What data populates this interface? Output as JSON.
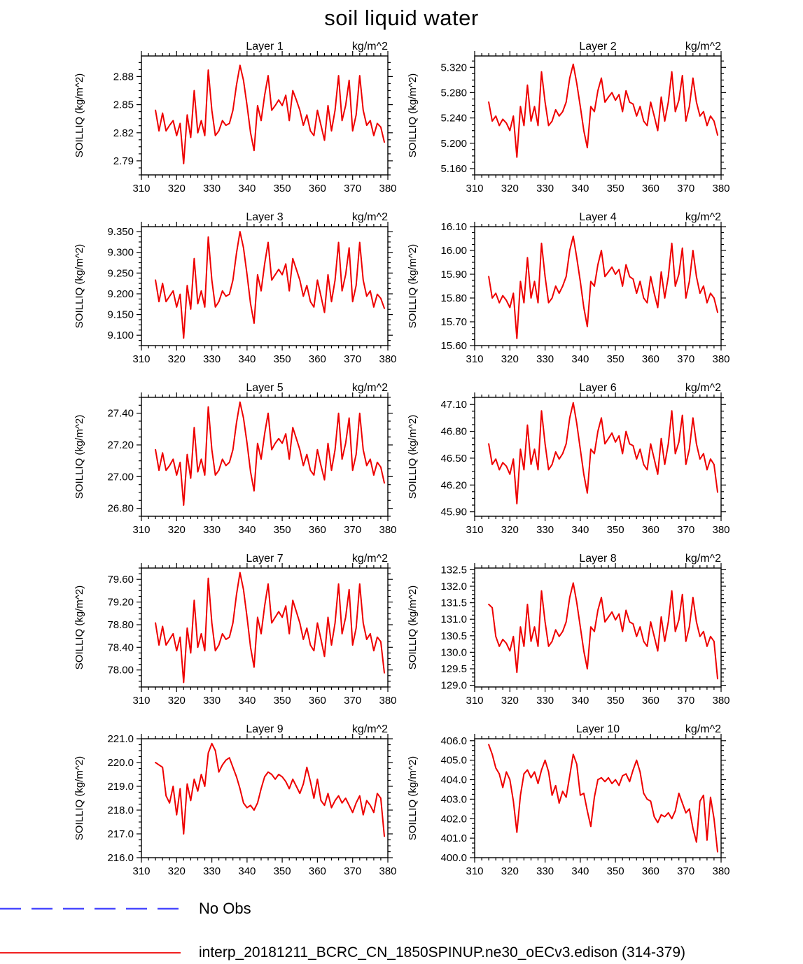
{
  "page": {
    "title": "soil liquid water"
  },
  "legend": {
    "no_obs": {
      "label": "No Obs",
      "color": "#4848ff",
      "line_style": "dashed"
    },
    "series": {
      "label": "interp_20181211_BCRC_CN_1850SPINUP.ne30_oECv3.edison (314-379)",
      "color": "#ee0000",
      "line_style": "solid"
    }
  },
  "chart_data": {
    "type": "line",
    "title": "soil liquid water",
    "series_name": "interp_20181211_BCRC_CN_1850SPINUP.ne30_oECv3.edison (314-379)",
    "series_color": "#ee0000",
    "xlim": [
      310,
      380
    ],
    "xticks": [
      310,
      320,
      330,
      340,
      350,
      360,
      370,
      380
    ],
    "x_minor_step": 2,
    "grid": false,
    "x": [
      314,
      315,
      316,
      317,
      318,
      319,
      320,
      321,
      322,
      323,
      324,
      325,
      326,
      327,
      328,
      329,
      330,
      331,
      332,
      333,
      334,
      335,
      336,
      337,
      338,
      339,
      340,
      341,
      342,
      343,
      344,
      345,
      346,
      347,
      348,
      349,
      350,
      351,
      352,
      353,
      354,
      355,
      356,
      357,
      358,
      359,
      360,
      361,
      362,
      363,
      364,
      365,
      366,
      367,
      368,
      369,
      370,
      371,
      372,
      373,
      374,
      375,
      376,
      377,
      378,
      379
    ],
    "panels": [
      {
        "title": "Layer 1",
        "units_label": "kg/m^2",
        "ylabel": "SOILLIQ  (kg/m^2)",
        "ylim": [
          2.775,
          2.902
        ],
        "yticks": [
          2.79,
          2.82,
          2.85,
          2.88
        ],
        "ytick_labels": [
          "2.79",
          "2.82",
          "2.85",
          "2.88"
        ],
        "values": [
          2.844,
          2.822,
          2.841,
          2.822,
          2.828,
          2.833,
          2.817,
          2.83,
          2.787,
          2.839,
          2.815,
          2.865,
          2.82,
          2.833,
          2.817,
          2.887,
          2.844,
          2.817,
          2.822,
          2.833,
          2.828,
          2.83,
          2.844,
          2.871,
          2.892,
          2.876,
          2.849,
          2.82,
          2.801,
          2.849,
          2.833,
          2.86,
          2.881,
          2.844,
          2.849,
          2.855,
          2.849,
          2.86,
          2.833,
          2.865,
          2.855,
          2.844,
          2.828,
          2.839,
          2.822,
          2.817,
          2.844,
          2.828,
          2.812,
          2.849,
          2.822,
          2.844,
          2.881,
          2.833,
          2.849,
          2.876,
          2.822,
          2.839,
          2.881,
          2.844,
          2.828,
          2.833,
          2.817,
          2.83,
          2.826,
          2.81
        ]
      },
      {
        "title": "Layer 2",
        "units_label": "kg/m^2",
        "ylabel": "SOILLIQ  (kg/m^2)",
        "ylim": [
          5.15,
          5.338
        ],
        "yticks": [
          5.16,
          5.2,
          5.24,
          5.28,
          5.32
        ],
        "ytick_labels": [
          "5.160",
          "5.200",
          "5.240",
          "5.280",
          "5.320"
        ],
        "values": [
          5.265,
          5.235,
          5.243,
          5.228,
          5.238,
          5.232,
          5.22,
          5.243,
          5.178,
          5.258,
          5.228,
          5.292,
          5.235,
          5.258,
          5.228,
          5.313,
          5.265,
          5.228,
          5.235,
          5.253,
          5.243,
          5.25,
          5.265,
          5.303,
          5.325,
          5.295,
          5.258,
          5.22,
          5.193,
          5.258,
          5.25,
          5.283,
          5.303,
          5.265,
          5.273,
          5.28,
          5.268,
          5.277,
          5.25,
          5.283,
          5.265,
          5.262,
          5.243,
          5.258,
          5.235,
          5.228,
          5.265,
          5.243,
          5.22,
          5.273,
          5.235,
          5.265,
          5.313,
          5.25,
          5.268,
          5.307,
          5.235,
          5.258,
          5.303,
          5.265,
          5.243,
          5.25,
          5.228,
          5.243,
          5.235,
          5.213
        ]
      },
      {
        "title": "Layer 3",
        "units_label": "kg/m^2",
        "ylabel": "SOILLIQ  (kg/m^2)",
        "ylim": [
          9.075,
          9.362
        ],
        "yticks": [
          9.1,
          9.15,
          9.2,
          9.25,
          9.3,
          9.35
        ],
        "ytick_labels": [
          "9.100",
          "9.150",
          "9.200",
          "9.250",
          "9.300",
          "9.350"
        ],
        "values": [
          9.233,
          9.181,
          9.225,
          9.181,
          9.194,
          9.207,
          9.168,
          9.199,
          9.093,
          9.22,
          9.163,
          9.285,
          9.176,
          9.207,
          9.168,
          9.337,
          9.233,
          9.168,
          9.181,
          9.207,
          9.194,
          9.199,
          9.233,
          9.298,
          9.35,
          9.311,
          9.246,
          9.176,
          9.129,
          9.246,
          9.207,
          9.272,
          9.324,
          9.233,
          9.246,
          9.259,
          9.246,
          9.272,
          9.207,
          9.285,
          9.259,
          9.233,
          9.194,
          9.22,
          9.181,
          9.168,
          9.233,
          9.194,
          9.155,
          9.246,
          9.181,
          9.233,
          9.324,
          9.207,
          9.246,
          9.311,
          9.181,
          9.22,
          9.324,
          9.233,
          9.194,
          9.207,
          9.168,
          9.199,
          9.189,
          9.165
        ]
      },
      {
        "title": "Layer 4",
        "units_label": "kg/m^2",
        "ylabel": "SOILLIQ  (kg/m^2)",
        "ylim": [
          15.6,
          16.1
        ],
        "yticks": [
          15.6,
          15.7,
          15.8,
          15.9,
          16.0,
          16.1
        ],
        "ytick_labels": [
          "15.60",
          "15.70",
          "15.80",
          "15.90",
          "16.00",
          "16.10"
        ],
        "values": [
          15.89,
          15.8,
          15.82,
          15.78,
          15.81,
          15.79,
          15.76,
          15.82,
          15.63,
          15.87,
          15.78,
          15.97,
          15.8,
          15.87,
          15.78,
          16.03,
          15.89,
          15.78,
          15.8,
          15.85,
          15.82,
          15.85,
          15.89,
          16.0,
          16.06,
          15.97,
          15.87,
          15.76,
          15.68,
          15.87,
          15.85,
          15.94,
          16.0,
          15.89,
          15.91,
          15.93,
          15.9,
          15.92,
          15.85,
          15.94,
          15.89,
          15.88,
          15.82,
          15.87,
          15.8,
          15.78,
          15.89,
          15.82,
          15.76,
          15.91,
          15.8,
          15.89,
          16.03,
          15.85,
          15.9,
          16.01,
          15.8,
          15.87,
          16.0,
          15.89,
          15.82,
          15.85,
          15.78,
          15.82,
          15.8,
          15.74
        ]
      },
      {
        "title": "Layer 5",
        "units_label": "kg/m^2",
        "ylabel": "SOILLIQ  (kg/m^2)",
        "ylim": [
          26.75,
          27.5
        ],
        "yticks": [
          26.8,
          27.0,
          27.2,
          27.4
        ],
        "ytick_labels": [
          "26.80",
          "27.00",
          "27.20",
          "27.40"
        ],
        "values": [
          27.17,
          27.04,
          27.15,
          27.04,
          27.07,
          27.11,
          27.01,
          27.09,
          26.82,
          27.14,
          26.99,
          27.31,
          27.03,
          27.11,
          27.01,
          27.44,
          27.17,
          27.01,
          27.04,
          27.11,
          27.07,
          27.09,
          27.17,
          27.34,
          27.47,
          27.37,
          27.21,
          27.03,
          26.91,
          27.21,
          27.11,
          27.27,
          27.4,
          27.17,
          27.21,
          27.24,
          27.21,
          27.27,
          27.11,
          27.31,
          27.24,
          27.17,
          27.07,
          27.14,
          27.04,
          27.01,
          27.17,
          27.07,
          26.98,
          27.21,
          27.04,
          27.17,
          27.4,
          27.11,
          27.21,
          27.37,
          27.04,
          27.14,
          27.4,
          27.17,
          27.07,
          27.11,
          27.01,
          27.09,
          27.06,
          26.96
        ]
      },
      {
        "title": "Layer 6",
        "units_label": "kg/m^2",
        "ylabel": "SOILLIQ  (kg/m^2)",
        "ylim": [
          45.85,
          47.18
        ],
        "yticks": [
          45.9,
          46.2,
          46.5,
          46.8,
          47.1
        ],
        "ytick_labels": [
          "45.90",
          "46.20",
          "46.50",
          "46.80",
          "47.10"
        ],
        "values": [
          46.66,
          46.43,
          46.49,
          46.37,
          46.45,
          46.41,
          46.32,
          46.49,
          45.99,
          46.6,
          46.37,
          46.87,
          46.43,
          46.6,
          46.37,
          47.03,
          46.66,
          46.37,
          46.43,
          46.57,
          46.49,
          46.55,
          46.66,
          46.95,
          47.12,
          46.89,
          46.6,
          46.32,
          46.11,
          46.6,
          46.55,
          46.8,
          46.95,
          46.66,
          46.72,
          46.78,
          46.68,
          46.75,
          46.55,
          46.8,
          46.66,
          46.64,
          46.49,
          46.6,
          46.43,
          46.37,
          46.66,
          46.49,
          46.32,
          46.72,
          46.43,
          46.66,
          47.03,
          46.55,
          46.68,
          46.98,
          46.43,
          46.6,
          46.95,
          46.66,
          46.49,
          46.55,
          46.37,
          46.49,
          46.43,
          46.12
        ]
      },
      {
        "title": "Layer 7",
        "units_label": "kg/m^2",
        "ylabel": "SOILLIQ  (kg/m^2)",
        "ylim": [
          77.7,
          79.8
        ],
        "yticks": [
          78.0,
          78.4,
          78.8,
          79.2,
          79.6
        ],
        "ytick_labels": [
          "78.00",
          "78.40",
          "78.80",
          "79.20",
          "79.60"
        ],
        "values": [
          78.83,
          78.44,
          78.77,
          78.44,
          78.54,
          78.64,
          78.34,
          78.58,
          77.78,
          78.74,
          78.3,
          79.23,
          78.4,
          78.64,
          78.34,
          79.62,
          78.83,
          78.34,
          78.44,
          78.64,
          78.54,
          78.58,
          78.83,
          79.33,
          79.72,
          79.42,
          78.93,
          78.4,
          78.05,
          78.93,
          78.64,
          79.13,
          79.52,
          78.83,
          78.93,
          79.03,
          78.93,
          79.13,
          78.64,
          79.23,
          79.03,
          78.83,
          78.54,
          78.74,
          78.44,
          78.34,
          78.83,
          78.54,
          78.24,
          78.93,
          78.44,
          78.83,
          79.52,
          78.64,
          78.93,
          79.42,
          78.44,
          78.74,
          79.52,
          78.83,
          78.54,
          78.64,
          78.34,
          78.58,
          78.5,
          77.95
        ]
      },
      {
        "title": "Layer 8",
        "units_label": "kg/m^2",
        "ylabel": "SOILLIQ  (kg/m^2)",
        "ylim": [
          128.95,
          132.55
        ],
        "yticks": [
          129.0,
          129.5,
          130.0,
          130.5,
          131.0,
          131.5,
          132.0,
          132.5
        ],
        "ytick_labels": [
          "129.0",
          "129.5",
          "130.0",
          "130.5",
          "131.0",
          "131.5",
          "132.0",
          "132.5"
        ],
        "values": [
          131.45,
          131.35,
          130.48,
          130.18,
          130.39,
          130.27,
          130.04,
          130.48,
          129.39,
          130.77,
          130.18,
          131.45,
          130.33,
          130.77,
          130.18,
          131.86,
          130.92,
          130.18,
          130.33,
          130.68,
          130.48,
          130.63,
          130.92,
          131.66,
          132.1,
          131.51,
          130.77,
          130.04,
          129.5,
          130.77,
          130.63,
          131.27,
          131.66,
          130.92,
          131.07,
          131.22,
          130.98,
          131.16,
          130.63,
          131.27,
          130.92,
          130.86,
          130.48,
          130.77,
          130.33,
          130.18,
          130.92,
          130.48,
          130.04,
          131.07,
          130.33,
          130.92,
          131.86,
          130.63,
          130.98,
          131.75,
          130.33,
          130.77,
          131.66,
          130.92,
          130.48,
          130.63,
          130.18,
          130.48,
          130.33,
          129.2
        ]
      },
      {
        "title": "Layer 9",
        "units_label": "kg/m^2",
        "ylabel": "SOILLIQ  (kg/m^2)",
        "ylim": [
          216.0,
          221.0
        ],
        "yticks": [
          216.0,
          217.0,
          218.0,
          219.0,
          220.0,
          221.0
        ],
        "ytick_labels": [
          "216.0",
          "217.0",
          "218.0",
          "219.0",
          "220.0",
          "221.0"
        ],
        "values": [
          220.0,
          219.9,
          219.8,
          218.6,
          218.3,
          219.0,
          217.8,
          218.9,
          217.0,
          219.1,
          218.4,
          219.3,
          218.8,
          219.5,
          219.0,
          220.4,
          220.8,
          220.5,
          219.6,
          219.9,
          220.1,
          220.2,
          219.8,
          219.4,
          218.9,
          218.3,
          218.1,
          218.2,
          218.0,
          218.3,
          218.9,
          219.4,
          219.6,
          219.5,
          219.3,
          219.5,
          219.4,
          219.2,
          218.9,
          219.3,
          219.0,
          218.7,
          219.1,
          219.8,
          219.2,
          218.5,
          219.3,
          218.4,
          218.2,
          218.7,
          218.1,
          218.4,
          218.6,
          218.3,
          218.5,
          218.2,
          217.9,
          218.3,
          218.6,
          217.8,
          218.4,
          218.2,
          217.9,
          218.7,
          218.5,
          216.9
        ]
      },
      {
        "title": "Layer 10",
        "units_label": "kg/m^2",
        "ylabel": "SOILLIQ  (kg/m^2)",
        "ylim": [
          400.0,
          406.1
        ],
        "yticks": [
          400.0,
          401.0,
          402.0,
          403.0,
          404.0,
          405.0,
          406.0
        ],
        "ytick_labels": [
          "400.0",
          "401.0",
          "402.0",
          "403.0",
          "404.0",
          "405.0",
          "406.0"
        ],
        "values": [
          405.8,
          405.3,
          404.6,
          404.3,
          403.6,
          404.4,
          404.0,
          402.9,
          401.3,
          403.2,
          404.3,
          404.5,
          404.1,
          404.4,
          403.8,
          404.5,
          405.0,
          404.4,
          403.2,
          403.7,
          402.8,
          403.4,
          403.1,
          404.2,
          405.3,
          404.8,
          403.2,
          403.3,
          402.4,
          401.6,
          403.1,
          404.0,
          404.1,
          403.9,
          404.1,
          403.8,
          404.0,
          403.7,
          404.2,
          404.3,
          403.9,
          404.5,
          405.0,
          404.4,
          403.3,
          403.0,
          402.9,
          402.1,
          401.8,
          402.2,
          402.1,
          402.3,
          402.0,
          402.4,
          403.3,
          402.8,
          402.3,
          402.5,
          401.5,
          400.8,
          402.9,
          403.2,
          400.9,
          403.1,
          402.0,
          400.3
        ]
      }
    ]
  }
}
